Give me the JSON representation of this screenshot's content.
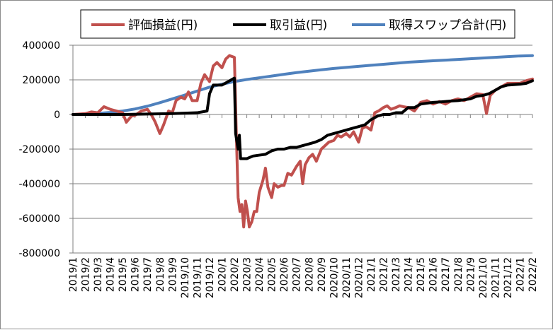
{
  "chart_data": {
    "type": "line",
    "title": "",
    "xlabel": "",
    "ylabel": "",
    "ylim": [
      -800000,
      400000
    ],
    "yticks": [
      400000,
      200000,
      0,
      -200000,
      -400000,
      -600000,
      -800000
    ],
    "ytick_labels": [
      "400000",
      "200000",
      "0",
      "-200000",
      "-400000",
      "-600000",
      "-800000"
    ],
    "x_range": [
      "2019/1",
      "2022/2"
    ],
    "categories": [
      "2019/1",
      "2019/2",
      "2019/3",
      "2019/4",
      "2019/5",
      "2019/6",
      "2019/7",
      "2019/8",
      "2019/9",
      "2019/10",
      "2019/11",
      "2019/12",
      "2020/1",
      "2020/2",
      "2020/3",
      "2020/4",
      "2020/5",
      "2020/6",
      "2020/7",
      "2020/8",
      "2020/9",
      "2020/10",
      "2020/11",
      "2020/12",
      "2021/1",
      "2021/2",
      "2021/3",
      "2021/4",
      "2021/5",
      "2021/6",
      "2021/7",
      "2021/8",
      "2021/9",
      "2021/10",
      "2021/11",
      "2021/12",
      "2022/1",
      "2022/2"
    ],
    "grid": "horizontal",
    "legend_position": "top",
    "series": [
      {
        "name": "評価損益(円)",
        "color": "#c0504d",
        "points": [
          [
            "2019/1",
            0
          ],
          [
            "2019/2",
            5000
          ],
          [
            "2019/2.5",
            15000
          ],
          [
            "2019/3",
            10000
          ],
          [
            "2019/3.5",
            45000
          ],
          [
            "2019/4",
            30000
          ],
          [
            "2019/4.5",
            20000
          ],
          [
            "2019/5",
            10000
          ],
          [
            "2019/5.3",
            -45000
          ],
          [
            "2019/5.7",
            -10000
          ],
          [
            "2019/6",
            -5000
          ],
          [
            "2019/6.5",
            20000
          ],
          [
            "2019/7",
            30000
          ],
          [
            "2019/7.3",
            0
          ],
          [
            "2019/7.6",
            -40000
          ],
          [
            "2019/8",
            -110000
          ],
          [
            "2019/8.3",
            -60000
          ],
          [
            "2019/8.7",
            20000
          ],
          [
            "2019/9",
            10000
          ],
          [
            "2019/9.3",
            80000
          ],
          [
            "2019/9.7",
            100000
          ],
          [
            "2019/10",
            90000
          ],
          [
            "2019/10.3",
            130000
          ],
          [
            "2019/10.6",
            80000
          ],
          [
            "2019/11",
            80000
          ],
          [
            "2019/11.3",
            180000
          ],
          [
            "2019/11.6",
            230000
          ],
          [
            "2019/12",
            190000
          ],
          [
            "2019/12.3",
            280000
          ],
          [
            "2019/12.6",
            300000
          ],
          [
            "2020/1",
            270000
          ],
          [
            "2020/1.3",
            320000
          ],
          [
            "2020/1.6",
            340000
          ],
          [
            "2020/2",
            330000
          ],
          [
            "2020/2.15",
            -100000
          ],
          [
            "2020/2.3",
            -480000
          ],
          [
            "2020/2.45",
            -560000
          ],
          [
            "2020/2.6",
            -520000
          ],
          [
            "2020/2.75",
            -650000
          ],
          [
            "2020/2.9",
            -500000
          ],
          [
            "2020/3.05",
            -560000
          ],
          [
            "2020/3.2",
            -650000
          ],
          [
            "2020/3.4",
            -620000
          ],
          [
            "2020/3.6",
            -560000
          ],
          [
            "2020/3.8",
            -560000
          ],
          [
            "2020/4",
            -450000
          ],
          [
            "2020/4.3",
            -380000
          ],
          [
            "2020/4.5",
            -310000
          ],
          [
            "2020/4.7",
            -420000
          ],
          [
            "2020/5",
            -480000
          ],
          [
            "2020/5.2",
            -400000
          ],
          [
            "2020/5.5",
            -420000
          ],
          [
            "2020/5.8",
            -410000
          ],
          [
            "2020/6",
            -410000
          ],
          [
            "2020/6.3",
            -340000
          ],
          [
            "2020/6.6",
            -350000
          ],
          [
            "2020/7",
            -300000
          ],
          [
            "2020/7.3",
            -270000
          ],
          [
            "2020/7.5",
            -400000
          ],
          [
            "2020/7.7",
            -290000
          ],
          [
            "2020/8",
            -250000
          ],
          [
            "2020/8.3",
            -230000
          ],
          [
            "2020/8.6",
            -270000
          ],
          [
            "2020/9",
            -200000
          ],
          [
            "2020/9.3",
            -180000
          ],
          [
            "2020/9.6",
            -160000
          ],
          [
            "2020/10",
            -150000
          ],
          [
            "2020/10.3",
            -120000
          ],
          [
            "2020/10.6",
            -130000
          ],
          [
            "2020/11",
            -110000
          ],
          [
            "2020/11.3",
            -130000
          ],
          [
            "2020/11.6",
            -100000
          ],
          [
            "2020/12",
            -160000
          ],
          [
            "2020/12.3",
            -80000
          ],
          [
            "2020/12.6",
            -70000
          ],
          [
            "2021/1",
            -90000
          ],
          [
            "2021/1.3",
            10000
          ],
          [
            "2021/1.6",
            20000
          ],
          [
            "2021/2",
            40000
          ],
          [
            "2021/2.3",
            50000
          ],
          [
            "2021/2.6",
            30000
          ],
          [
            "2021/3",
            40000
          ],
          [
            "2021/3.3",
            50000
          ],
          [
            "2021/3.6",
            45000
          ],
          [
            "2021/4",
            40000
          ],
          [
            "2021/4.5",
            20000
          ],
          [
            "2021/5",
            70000
          ],
          [
            "2021/5.5",
            80000
          ],
          [
            "2021/6",
            60000
          ],
          [
            "2021/6.5",
            75000
          ],
          [
            "2021/7",
            60000
          ],
          [
            "2021/7.5",
            80000
          ],
          [
            "2021/8",
            90000
          ],
          [
            "2021/8.5",
            80000
          ],
          [
            "2021/9",
            100000
          ],
          [
            "2021/9.5",
            120000
          ],
          [
            "2021/10",
            115000
          ],
          [
            "2021/10.3",
            5000
          ],
          [
            "2021/10.6",
            110000
          ],
          [
            "2021/11",
            140000
          ],
          [
            "2021/11.5",
            160000
          ],
          [
            "2021/12",
            180000
          ],
          [
            "2022/1",
            180000
          ],
          [
            "2022/1.5",
            195000
          ],
          [
            "2022/2",
            205000
          ]
        ]
      },
      {
        "name": "取引益(円)",
        "color": "#000000",
        "points": [
          [
            "2019/1",
            0
          ],
          [
            "2019/5",
            0
          ],
          [
            "2019/9",
            5000
          ],
          [
            "2019/11",
            10000
          ],
          [
            "2019/11.8",
            20000
          ],
          [
            "2019/12",
            120000
          ],
          [
            "2019/12.3",
            170000
          ],
          [
            "2020/1",
            170000
          ],
          [
            "2020/1.5",
            190000
          ],
          [
            "2020/2",
            210000
          ],
          [
            "2020/2.1",
            -110000
          ],
          [
            "2020/2.3",
            -200000
          ],
          [
            "2020/2.4",
            -120000
          ],
          [
            "2020/2.5",
            -255000
          ],
          [
            "2020/3",
            -255000
          ],
          [
            "2020/3.5",
            -240000
          ],
          [
            "2020/4",
            -235000
          ],
          [
            "2020/4.5",
            -230000
          ],
          [
            "2020/5",
            -210000
          ],
          [
            "2020/5.5",
            -200000
          ],
          [
            "2020/6",
            -200000
          ],
          [
            "2020/6.5",
            -190000
          ],
          [
            "2020/7",
            -190000
          ],
          [
            "2020/7.5",
            -180000
          ],
          [
            "2020/8",
            -170000
          ],
          [
            "2020/8.5",
            -160000
          ],
          [
            "2020/9",
            -145000
          ],
          [
            "2020/9.5",
            -120000
          ],
          [
            "2020/10",
            -110000
          ],
          [
            "2020/10.5",
            -100000
          ],
          [
            "2020/11",
            -90000
          ],
          [
            "2020/11.5",
            -80000
          ],
          [
            "2020/12",
            -70000
          ],
          [
            "2020/12.5",
            -60000
          ],
          [
            "2021/1",
            -30000
          ],
          [
            "2021/1.5",
            -10000
          ],
          [
            "2021/2",
            0
          ],
          [
            "2021/2.5",
            0
          ],
          [
            "2021/3",
            10000
          ],
          [
            "2021/3.5",
            10000
          ],
          [
            "2021/4",
            40000
          ],
          [
            "2021/4.5",
            40000
          ],
          [
            "2021/5",
            60000
          ],
          [
            "2021/5.5",
            65000
          ],
          [
            "2021/6",
            70000
          ],
          [
            "2021/6.5",
            72000
          ],
          [
            "2021/7",
            75000
          ],
          [
            "2021/7.5",
            78000
          ],
          [
            "2021/8",
            80000
          ],
          [
            "2021/8.5",
            85000
          ],
          [
            "2021/9",
            90000
          ],
          [
            "2021/9.5",
            105000
          ],
          [
            "2021/10",
            110000
          ],
          [
            "2021/10.5",
            120000
          ],
          [
            "2021/11",
            140000
          ],
          [
            "2021/11.5",
            160000
          ],
          [
            "2021/12",
            170000
          ],
          [
            "2022/1",
            175000
          ],
          [
            "2022/1.5",
            180000
          ],
          [
            "2022/2",
            195000
          ]
        ]
      },
      {
        "name": "取得スワップ合計(円)",
        "color": "#4f81bd",
        "points": [
          [
            "2019/1",
            0
          ],
          [
            "2019/2",
            2000
          ],
          [
            "2019/3",
            6000
          ],
          [
            "2019/4",
            12000
          ],
          [
            "2019/5",
            20000
          ],
          [
            "2019/6",
            32000
          ],
          [
            "2019/7",
            48000
          ],
          [
            "2019/8",
            68000
          ],
          [
            "2019/9",
            90000
          ],
          [
            "2019/10",
            112000
          ],
          [
            "2019/11",
            135000
          ],
          [
            "2019/12",
            158000
          ],
          [
            "2020/1",
            175000
          ],
          [
            "2020/2",
            190000
          ],
          [
            "2020/3",
            202000
          ],
          [
            "2020/4",
            212000
          ],
          [
            "2020/5",
            222000
          ],
          [
            "2020/6",
            232000
          ],
          [
            "2020/7",
            242000
          ],
          [
            "2020/8",
            250000
          ],
          [
            "2020/9",
            258000
          ],
          [
            "2020/10",
            266000
          ],
          [
            "2020/11",
            272000
          ],
          [
            "2020/12",
            278000
          ],
          [
            "2021/1",
            284000
          ],
          [
            "2021/2",
            290000
          ],
          [
            "2021/3",
            296000
          ],
          [
            "2021/4",
            302000
          ],
          [
            "2021/5",
            306000
          ],
          [
            "2021/6",
            310000
          ],
          [
            "2021/7",
            314000
          ],
          [
            "2021/8",
            318000
          ],
          [
            "2021/9",
            322000
          ],
          [
            "2021/10",
            326000
          ],
          [
            "2021/11",
            330000
          ],
          [
            "2021/12",
            334000
          ],
          [
            "2022/1",
            338000
          ],
          [
            "2022/2",
            340000
          ]
        ]
      }
    ]
  }
}
